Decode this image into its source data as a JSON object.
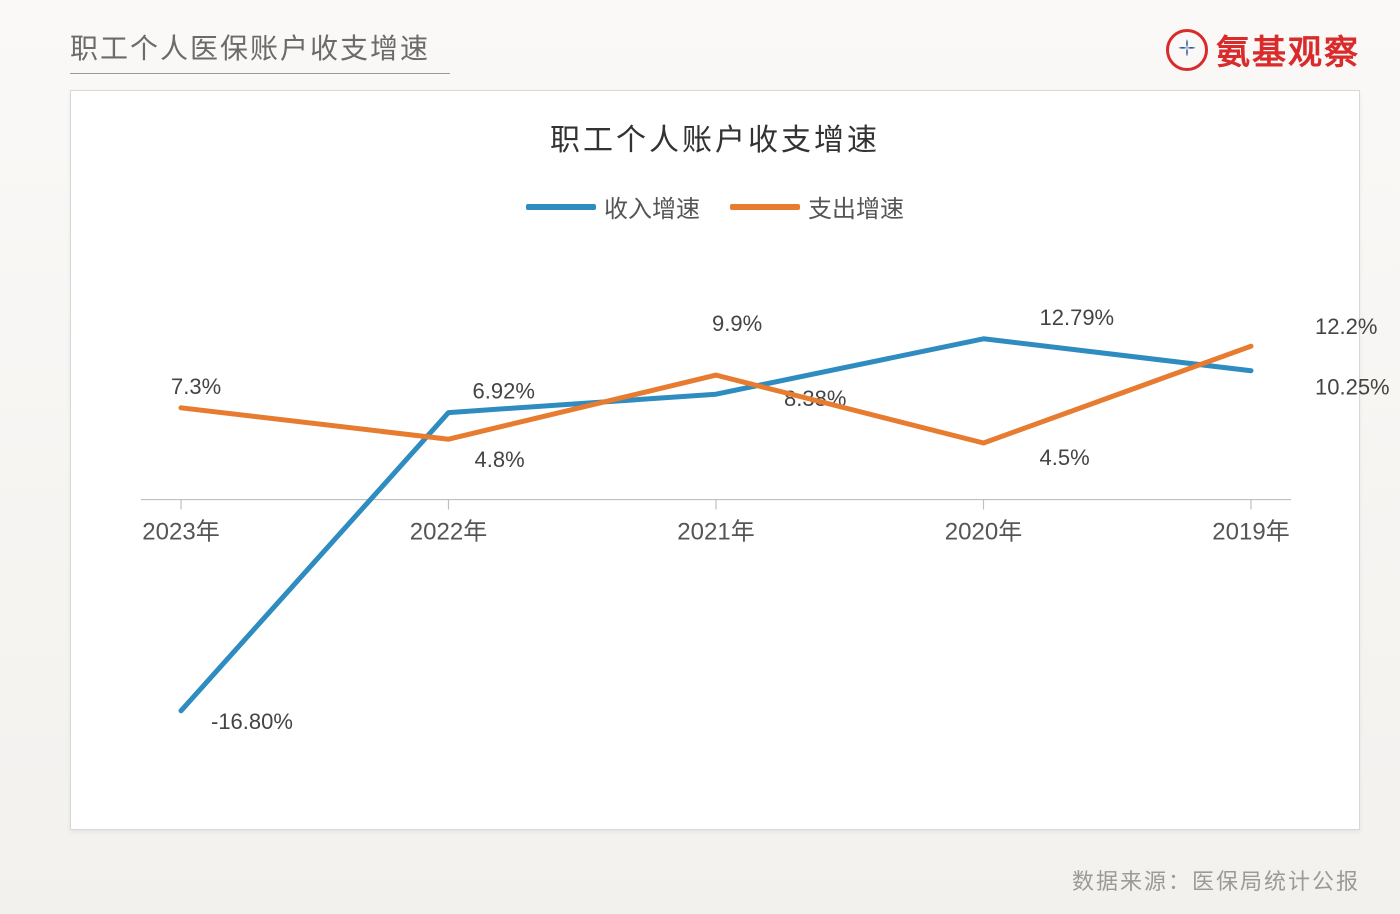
{
  "header": {
    "page_title": "职工个人医保账户收支增速",
    "brand_text": "氨基观察"
  },
  "source_line": "数据来源：医保局统计公报",
  "chart": {
    "type": "line",
    "title": "职工个人账户收支增速",
    "title_fontsize": 30,
    "categories": [
      "2023年",
      "2022年",
      "2021年",
      "2020年",
      "2019年"
    ],
    "series": [
      {
        "name": "收入增速",
        "color": "#2e8cc0",
        "values": [
          -16.8,
          6.92,
          8.38,
          12.79,
          10.25
        ],
        "labels": [
          "-16.80%",
          "6.92%",
          "8.38%",
          "12.79%",
          "10.25%"
        ],
        "label_offsets": [
          [
            30,
            18
          ],
          [
            24,
            -14
          ],
          [
            68,
            12
          ],
          [
            56,
            -14
          ],
          [
            64,
            24
          ]
        ]
      },
      {
        "name": "支出增速",
        "color": "#e77b2f",
        "values": [
          7.3,
          4.8,
          9.9,
          4.5,
          12.2
        ],
        "labels": [
          "7.3%",
          "4.8%",
          "9.9%",
          "4.5%",
          "12.2%"
        ],
        "label_offsets": [
          [
            -10,
            -14
          ],
          [
            26,
            28
          ],
          [
            -4,
            -44
          ],
          [
            56,
            22
          ],
          [
            64,
            -12
          ]
        ]
      }
    ],
    "y_axis": {
      "min": -20,
      "max": 15,
      "baseline": 0
    },
    "axis_fontsize": 24,
    "label_fontsize": 22,
    "line_width": 5,
    "marker": {
      "style": "none"
    },
    "background_color": "#ffffff",
    "axis_color": "#bfbfbf",
    "tick_color": "#bfbfbf",
    "text_color": "#555555",
    "legend_swatch_width": 70
  }
}
